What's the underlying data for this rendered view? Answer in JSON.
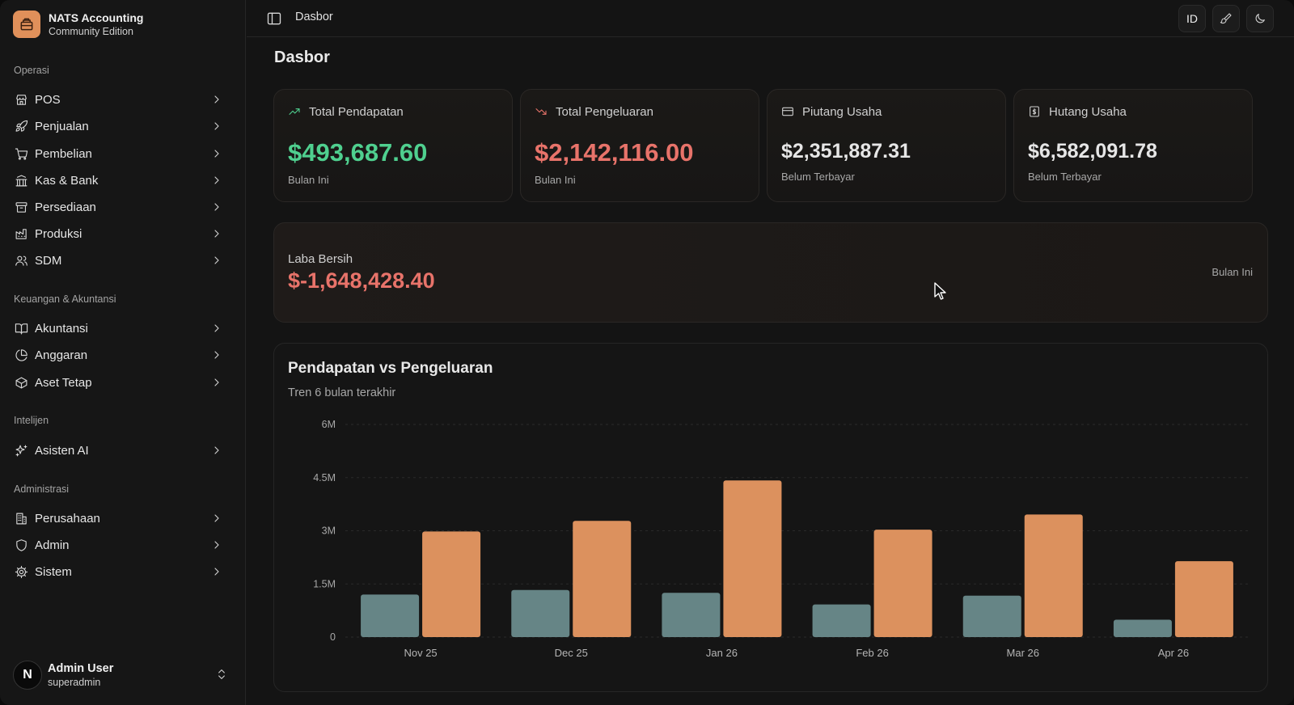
{
  "brand": {
    "title": "NATS Accounting",
    "subtitle": "Community Edition"
  },
  "sidebar": {
    "sections": [
      {
        "label": "Operasi",
        "items": [
          {
            "label": "POS",
            "icon": "store-icon"
          },
          {
            "label": "Penjualan",
            "icon": "rocket-icon"
          },
          {
            "label": "Pembelian",
            "icon": "cart-icon"
          },
          {
            "label": "Kas & Bank",
            "icon": "bank-icon"
          },
          {
            "label": "Persediaan",
            "icon": "archive-icon"
          },
          {
            "label": "Produksi",
            "icon": "factory-icon"
          },
          {
            "label": "SDM",
            "icon": "users-icon"
          }
        ]
      },
      {
        "label": "Keuangan & Akuntansi",
        "items": [
          {
            "label": "Akuntansi",
            "icon": "book-icon"
          },
          {
            "label": "Anggaran",
            "icon": "pie-icon"
          },
          {
            "label": "Aset Tetap",
            "icon": "box-icon"
          }
        ]
      },
      {
        "label": "Intelijen",
        "items": [
          {
            "label": "Asisten AI",
            "icon": "sparkles-icon"
          }
        ]
      },
      {
        "label": "Administrasi",
        "items": [
          {
            "label": "Perusahaan",
            "icon": "building-icon"
          },
          {
            "label": "Admin",
            "icon": "shield-icon"
          },
          {
            "label": "Sistem",
            "icon": "gear-icon"
          }
        ]
      }
    ],
    "user": {
      "initial": "N",
      "name": "Admin User",
      "role": "superadmin"
    }
  },
  "header": {
    "breadcrumb": "Dasbor",
    "lang_button": "ID"
  },
  "page": {
    "title": "Dasbor"
  },
  "stats": [
    {
      "label": "Total Pendapatan",
      "value": "$493,687.60",
      "sub": "Bulan Ini",
      "icon": "trending-up-icon",
      "color": "#4fd08f"
    },
    {
      "label": "Total Pengeluaran",
      "value": "$2,142,116.00",
      "sub": "Bulan Ini",
      "icon": "trending-down-icon",
      "color": "#e8736a"
    },
    {
      "label": "Piutang Usaha",
      "value": "$2,351,887.31",
      "sub": "Belum Terbayar",
      "icon": "credit-card-icon",
      "color": "#e6e6e6"
    },
    {
      "label": "Hutang Usaha",
      "value": "$6,582,091.78",
      "sub": "Belum Terbayar",
      "icon": "receipt-icon",
      "color": "#e6e6e6"
    }
  ],
  "net_profit": {
    "label": "Laba Bersih",
    "value": "$-1,648,428.40",
    "period": "Bulan Ini",
    "color": "#e8736a"
  },
  "chart_data": {
    "type": "bar",
    "title": "Pendapatan vs Pengeluaran",
    "subtitle": "Tren 6 bulan terakhir",
    "categories": [
      "Nov 25",
      "Dec 25",
      "Jan 26",
      "Feb 26",
      "Mar 26",
      "Apr 26"
    ],
    "series": [
      {
        "values": [
          1200000,
          1330000,
          1250000,
          920000,
          1170000,
          490000
        ],
        "color": "#668586"
      },
      {
        "values": [
          2980000,
          3280000,
          4420000,
          3030000,
          3460000,
          2142116
        ],
        "color": "#dc915e"
      }
    ],
    "yticks": [
      "0",
      "1.5M",
      "3M",
      "4.5M",
      "6M"
    ],
    "ytick_values": [
      0,
      1500000,
      3000000,
      4500000,
      6000000
    ],
    "ylim": [
      0,
      6000000
    ],
    "grid": true
  }
}
